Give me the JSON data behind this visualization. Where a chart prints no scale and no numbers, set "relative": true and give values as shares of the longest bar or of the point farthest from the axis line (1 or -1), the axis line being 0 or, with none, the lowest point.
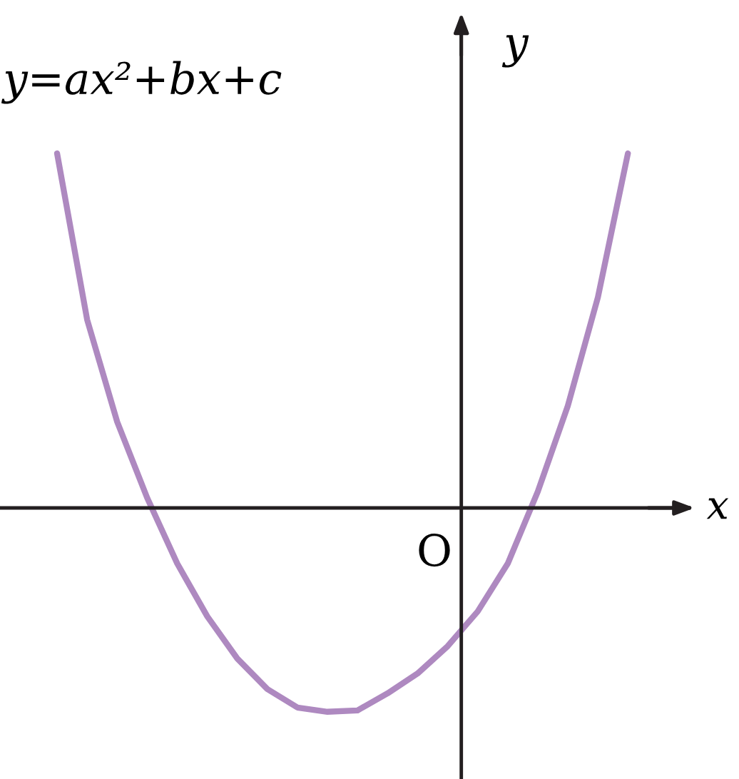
{
  "chart_data": {
    "type": "line",
    "relative": true,
    "xlabel": "x",
    "ylabel": "y",
    "categories": [
      null,
      null,
      null,
      null,
      null,
      null,
      null,
      null,
      null,
      null,
      null,
      null,
      null,
      null,
      null,
      null,
      null,
      null,
      null,
      null
    ],
    "series": [
      {
        "name": "y=ax²+bx+c",
        "color": "#ae89c0",
        "values": [
          1.0,
          0.531,
          0.243,
          0.028,
          -0.157,
          -0.306,
          -0.425,
          -0.511,
          -0.563,
          -0.575,
          -0.571,
          -0.523,
          -0.467,
          -0.39,
          -0.292,
          -0.157,
          0.046,
          0.288,
          0.594,
          1.0
        ]
      }
    ],
    "annotations": [
      "O"
    ],
    "legend": false,
    "marker": "none",
    "line_style": "solid"
  }
}
